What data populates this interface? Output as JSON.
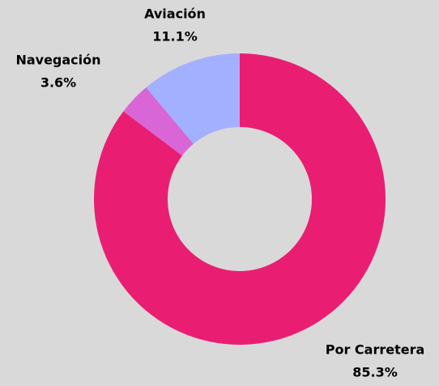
{
  "chart_data": {
    "type": "donut",
    "categories": [
      "Por Carretera",
      "Navegación",
      "Aviación"
    ],
    "values": [
      85.3,
      3.6,
      11.1
    ],
    "value_labels": [
      "85.3%",
      "3.6%",
      "11.1%"
    ],
    "colors": [
      "#e91e73",
      "#d966d6",
      "#a3b0ff"
    ]
  }
}
